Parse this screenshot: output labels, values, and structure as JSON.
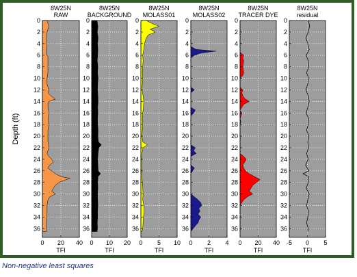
{
  "caption": "Non-negative least squares",
  "y_axis_label": "Depth (ft)",
  "colors": {
    "frame": "#2e5e23",
    "axes_bg": "#9d9d9d",
    "grid": "#ffffff"
  },
  "chart_data": [
    {
      "type": "area",
      "title_line1": "8W25N",
      "title_line2": "RAW",
      "xlabel": "TFI",
      "xlim": [
        0,
        40
      ],
      "xticks": [
        0,
        20,
        40
      ],
      "ylim": [
        0,
        37.5
      ],
      "yticks": [
        0,
        2,
        4,
        6,
        8,
        10,
        12,
        14,
        16,
        18,
        20,
        22,
        24,
        26,
        28,
        30,
        32,
        34,
        36
      ],
      "color": "#f79646",
      "depth": [
        0,
        1,
        2,
        3,
        4,
        5,
        5.8,
        6.2,
        7,
        8,
        9,
        10,
        11,
        12,
        12.5,
        13,
        13.6,
        14,
        14.4,
        15,
        16,
        17,
        18,
        19,
        20,
        21,
        22,
        23,
        23.5,
        24,
        24.5,
        25,
        25.5,
        26,
        26.5,
        27,
        27.3,
        27.6,
        28,
        28.5,
        29,
        29.5,
        30,
        30.5,
        31,
        32,
        33,
        34,
        35,
        36,
        36.5
      ],
      "values": [
        5,
        7,
        5,
        4,
        5,
        4,
        4,
        6,
        6,
        6,
        6,
        5,
        5,
        7,
        6,
        9,
        14,
        7,
        6,
        6,
        7,
        6,
        7,
        6,
        6,
        6,
        7,
        5,
        7,
        10,
        12,
        8,
        6,
        10,
        14,
        20,
        30,
        24,
        18,
        14,
        12,
        10,
        14,
        8,
        6,
        5,
        5,
        5,
        4,
        4,
        4
      ]
    },
    {
      "type": "area",
      "title_line1": "8W25N",
      "title_line2": "BACKGROUND",
      "xlabel": "TFI",
      "xlim": [
        0,
        20
      ],
      "xticks": [
        0,
        10,
        20
      ],
      "ylim": [
        0,
        37.5
      ],
      "yticks": [
        0,
        2,
        4,
        6,
        8,
        10,
        12,
        14,
        16,
        18,
        20,
        22,
        24,
        26,
        28,
        30,
        32,
        34,
        36
      ],
      "color": "#000000",
      "depth": [
        0,
        1,
        2,
        3,
        4,
        5,
        6,
        7,
        8,
        9,
        10,
        11,
        12,
        13,
        14,
        15,
        16,
        17,
        18,
        19,
        20,
        21,
        21.5,
        22,
        23,
        24,
        25,
        26,
        26.5,
        27,
        28,
        29,
        30,
        31,
        32,
        33,
        34,
        35,
        36,
        36.5
      ],
      "values": [
        3,
        3.5,
        3.2,
        3.6,
        3.3,
        3.5,
        3.4,
        3.2,
        3.5,
        3.3,
        3.6,
        3.4,
        3.3,
        3.5,
        3.6,
        3.4,
        3.5,
        3.3,
        3.4,
        3.6,
        3.5,
        3.8,
        5.5,
        4,
        3.6,
        3.4,
        3.5,
        3.7,
        5,
        3.6,
        3.4,
        3.5,
        3.3,
        3.4,
        3.5,
        3.3,
        3.4,
        3.2,
        3.3,
        3
      ]
    },
    {
      "type": "area",
      "title_line1": "8W25N",
      "title_line2": "MOLASS01",
      "xlabel": "TFI",
      "xlim": [
        0,
        10
      ],
      "xticks": [
        0,
        5,
        10
      ],
      "ylim": [
        0,
        37.5
      ],
      "yticks": [
        0,
        2,
        4,
        6,
        8,
        10,
        12,
        14,
        16,
        18,
        20,
        22,
        24,
        26,
        28,
        30,
        32,
        34,
        36
      ],
      "color": "#ffff00",
      "depth": [
        0,
        0.5,
        1,
        1.5,
        2,
        2.5,
        3,
        3.5,
        4,
        5,
        6,
        7,
        8,
        9,
        10,
        11,
        12,
        13,
        14,
        15,
        16,
        17,
        18,
        19,
        20,
        21,
        21.5,
        22,
        23,
        24,
        25,
        26,
        27,
        28,
        29,
        30,
        31,
        32,
        33,
        34,
        35,
        36,
        36.5
      ],
      "values": [
        1.5,
        3,
        5,
        2.5,
        4,
        2,
        1.5,
        1.2,
        1,
        0.8,
        0.5,
        0.6,
        0.5,
        0.4,
        0.5,
        0.4,
        0.3,
        0.6,
        0.8,
        0.7,
        0.5,
        0.4,
        0.5,
        0.4,
        0.3,
        0.5,
        1.8,
        0.6,
        0.3,
        0.2,
        0.3,
        0.2,
        0.3,
        0.4,
        0.5,
        0.6,
        0.5,
        0.8,
        0.9,
        0.7,
        0.6,
        0.5,
        0.3
      ]
    },
    {
      "type": "area",
      "title_line1": "8W25N",
      "title_line2": "MOLASS02",
      "xlabel": "TFI",
      "xlim": [
        0,
        4
      ],
      "xticks": [
        0,
        2,
        4
      ],
      "ylim": [
        0,
        37.5
      ],
      "yticks": [
        0,
        2,
        4,
        6,
        8,
        10,
        12,
        14,
        16,
        18,
        20,
        22,
        24,
        26,
        28,
        30,
        32,
        34,
        36
      ],
      "color": "#1a1a8c",
      "depth": [
        0,
        4.5,
        5,
        5.3,
        5.6,
        6,
        6.5,
        10,
        11.5,
        12,
        12.5,
        15,
        15.5,
        16,
        16.5,
        20,
        21.5,
        22,
        22.5,
        23,
        23.5,
        25,
        25.5,
        26,
        26.5,
        30,
        31,
        31.5,
        32,
        32.5,
        33,
        33.5,
        34,
        34.5,
        35,
        35.5,
        36.5
      ],
      "values": [
        0,
        0,
        0.6,
        2.8,
        1.2,
        0.4,
        0,
        0,
        0,
        0.4,
        0,
        0,
        0.5,
        0.3,
        0,
        0,
        0,
        0.5,
        0.3,
        0.6,
        0,
        0,
        0.4,
        0.2,
        0,
        0,
        0.8,
        1.1,
        1.2,
        0.9,
        1.0,
        0.8,
        1.1,
        0.9,
        0.8,
        0.5,
        0
      ]
    },
    {
      "type": "area",
      "title_line1": "8W25N",
      "title_line2": "TRACER DYE",
      "xlabel": "TFI",
      "xlim": [
        0,
        40
      ],
      "xticks": [
        0,
        20,
        40
      ],
      "ylim": [
        0,
        37.5
      ],
      "yticks": [
        0,
        2,
        4,
        6,
        8,
        10,
        12,
        14,
        16,
        18,
        20,
        22,
        24,
        26,
        28,
        30,
        32,
        34,
        36
      ],
      "color": "#ff0000",
      "depth": [
        0,
        5.5,
        6,
        6.5,
        7,
        8,
        9,
        9.5,
        10,
        11.5,
        12,
        12.5,
        13,
        13.5,
        14,
        14.5,
        15,
        15.5,
        16,
        17,
        17.5,
        18,
        23,
        23.5,
        24,
        24.5,
        25,
        25.5,
        26,
        26.5,
        27,
        27.5,
        28,
        28.5,
        29,
        29.5,
        30,
        30.5,
        31,
        31.5,
        32,
        36.5
      ],
      "values": [
        0,
        0,
        4,
        3,
        4,
        3,
        4,
        3,
        0,
        0,
        3,
        2,
        3,
        5,
        10,
        4,
        2,
        0,
        2,
        0,
        1,
        0,
        0,
        4,
        7,
        5,
        3,
        4,
        6,
        10,
        16,
        22,
        18,
        14,
        12,
        10,
        14,
        8,
        4,
        2,
        0,
        0
      ]
    },
    {
      "type": "line",
      "title_line1": "8W25N",
      "title_line2": "residual",
      "xlabel": "TFI",
      "xlim": [
        -5,
        5
      ],
      "xticks": [
        -5,
        0,
        5
      ],
      "ylim": [
        0,
        37.5
      ],
      "yticks": [
        0,
        2,
        4,
        6,
        8,
        10,
        12,
        14,
        16,
        18,
        20,
        22,
        24,
        26,
        28,
        30,
        32,
        34,
        36
      ],
      "color": "#000000",
      "depth": [
        0,
        1,
        2,
        3,
        4,
        5,
        6,
        7,
        8,
        9,
        10,
        11,
        12,
        13,
        14,
        15,
        16,
        17,
        18,
        19,
        20,
        21,
        22,
        23,
        24,
        25,
        26,
        26.5,
        27,
        28,
        29,
        30,
        31,
        32,
        33,
        34,
        35,
        36,
        36.5
      ],
      "values": [
        0.3,
        0.6,
        0.2,
        -0.4,
        0.1,
        0.5,
        -0.3,
        0.2,
        0.4,
        -0.2,
        0.3,
        0.1,
        -0.4,
        0.2,
        0.5,
        0.1,
        -0.3,
        0.3,
        0.2,
        -0.2,
        0.4,
        0.1,
        0.3,
        -0.2,
        0.2,
        -0.5,
        0.4,
        -1.2,
        0.3,
        0.2,
        -0.3,
        0.5,
        0.1,
        -0.2,
        0.3,
        0.1,
        -0.2,
        0.2,
        0.1
      ]
    }
  ]
}
